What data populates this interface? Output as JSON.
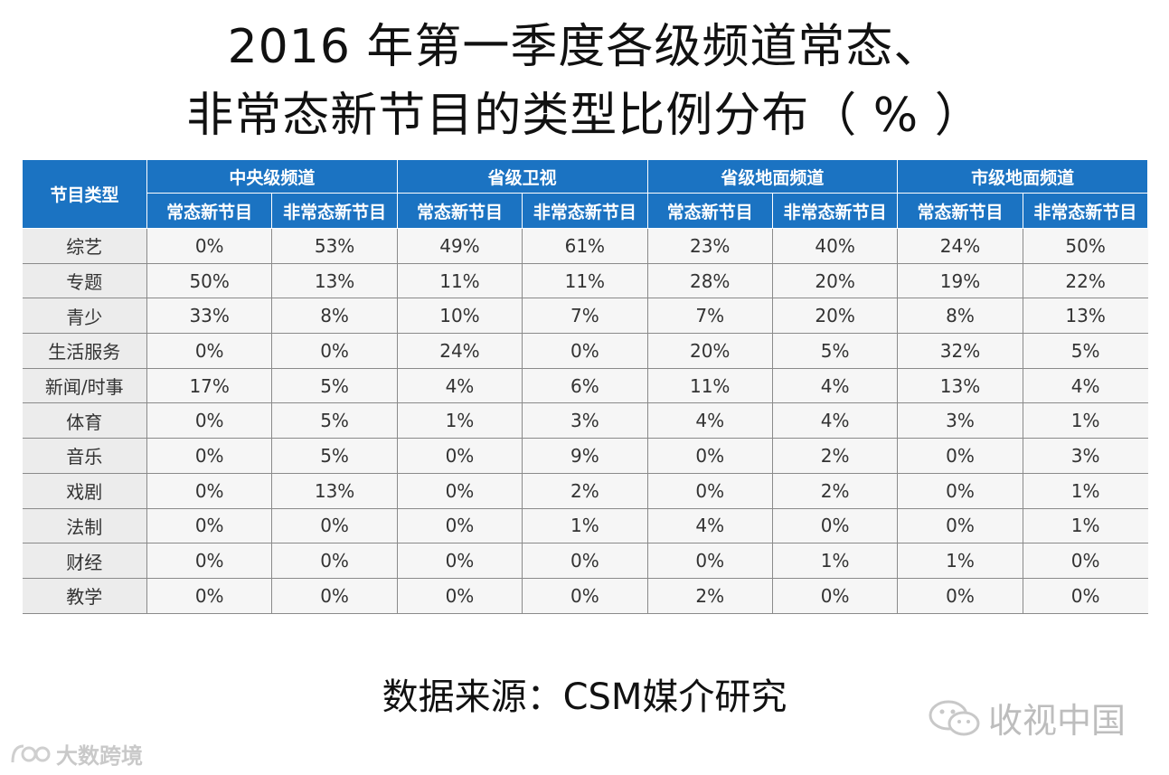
{
  "title": {
    "line1": "2016 年第一季度各级频道常态、",
    "line2": "非常态新节目的类型比例分布（ % ）"
  },
  "table": {
    "corner_header": "节目类型",
    "group_headers": [
      "中央级频道",
      "省级卫视",
      "省级地面频道",
      "市级地面频道"
    ],
    "sub_headers": [
      "常态新节目",
      "非常态新节目",
      "常态新节目",
      "非常态新节目",
      "常态新节目",
      "非常态新节目",
      "常态新节目",
      "非常态新节目"
    ],
    "rows": [
      {
        "category": "综艺",
        "values": [
          "0%",
          "53%",
          "49%",
          "61%",
          "23%",
          "40%",
          "24%",
          "50%"
        ]
      },
      {
        "category": "专题",
        "values": [
          "50%",
          "13%",
          "11%",
          "11%",
          "28%",
          "20%",
          "19%",
          "22%"
        ]
      },
      {
        "category": "青少",
        "values": [
          "33%",
          "8%",
          "10%",
          "7%",
          "7%",
          "20%",
          "8%",
          "13%"
        ]
      },
      {
        "category": "生活服务",
        "values": [
          "0%",
          "0%",
          "24%",
          "0%",
          "20%",
          "5%",
          "32%",
          "5%"
        ]
      },
      {
        "category": "新闻/时事",
        "values": [
          "17%",
          "5%",
          "4%",
          "6%",
          "11%",
          "4%",
          "13%",
          "4%"
        ]
      },
      {
        "category": "体育",
        "values": [
          "0%",
          "5%",
          "1%",
          "3%",
          "4%",
          "4%",
          "3%",
          "1%"
        ]
      },
      {
        "category": "音乐",
        "values": [
          "0%",
          "5%",
          "0%",
          "9%",
          "0%",
          "2%",
          "0%",
          "3%"
        ]
      },
      {
        "category": "戏剧",
        "values": [
          "0%",
          "13%",
          "0%",
          "2%",
          "0%",
          "2%",
          "0%",
          "1%"
        ]
      },
      {
        "category": "法制",
        "values": [
          "0%",
          "0%",
          "0%",
          "1%",
          "4%",
          "0%",
          "0%",
          "1%"
        ]
      },
      {
        "category": "财经",
        "values": [
          "0%",
          "0%",
          "0%",
          "0%",
          "0%",
          "1%",
          "1%",
          "0%"
        ]
      },
      {
        "category": "教学",
        "values": [
          "0%",
          "0%",
          "0%",
          "0%",
          "2%",
          "0%",
          "0%",
          "0%"
        ]
      }
    ]
  },
  "chart_data": {
    "type": "table",
    "title": "2016 年第一季度各级频道常态、非常态新节目的类型比例分布（ % ）",
    "columns": [
      "中央级频道 常态新节目",
      "中央级频道 非常态新节目",
      "省级卫视 常态新节目",
      "省级卫视 非常态新节目",
      "省级地面频道 常态新节目",
      "省级地面频道 非常态新节目",
      "市级地面频道 常态新节目",
      "市级地面频道 非常态新节目"
    ],
    "categories": [
      "综艺",
      "专题",
      "青少",
      "生活服务",
      "新闻/时事",
      "体育",
      "音乐",
      "戏剧",
      "法制",
      "财经",
      "教学"
    ],
    "values": [
      [
        0,
        53,
        49,
        61,
        23,
        40,
        24,
        50
      ],
      [
        50,
        13,
        11,
        11,
        28,
        20,
        19,
        22
      ],
      [
        33,
        8,
        10,
        7,
        7,
        20,
        8,
        13
      ],
      [
        0,
        0,
        24,
        0,
        20,
        5,
        32,
        5
      ],
      [
        17,
        5,
        4,
        6,
        11,
        4,
        13,
        4
      ],
      [
        0,
        5,
        1,
        3,
        4,
        4,
        3,
        1
      ],
      [
        0,
        5,
        0,
        9,
        0,
        2,
        0,
        3
      ],
      [
        0,
        13,
        0,
        2,
        0,
        2,
        0,
        1
      ],
      [
        0,
        0,
        0,
        1,
        4,
        0,
        0,
        1
      ],
      [
        0,
        0,
        0,
        0,
        0,
        1,
        1,
        0
      ],
      [
        0,
        0,
        0,
        0,
        2,
        0,
        0,
        0
      ]
    ]
  },
  "source": "数据来源：CSM媒介研究",
  "watermarks": {
    "right": "收视中国",
    "left": "大数跨境"
  },
  "colors": {
    "header_bg": "#1b73c2",
    "header_text": "#ffffff",
    "cell_bg": "#f6f6f6"
  }
}
